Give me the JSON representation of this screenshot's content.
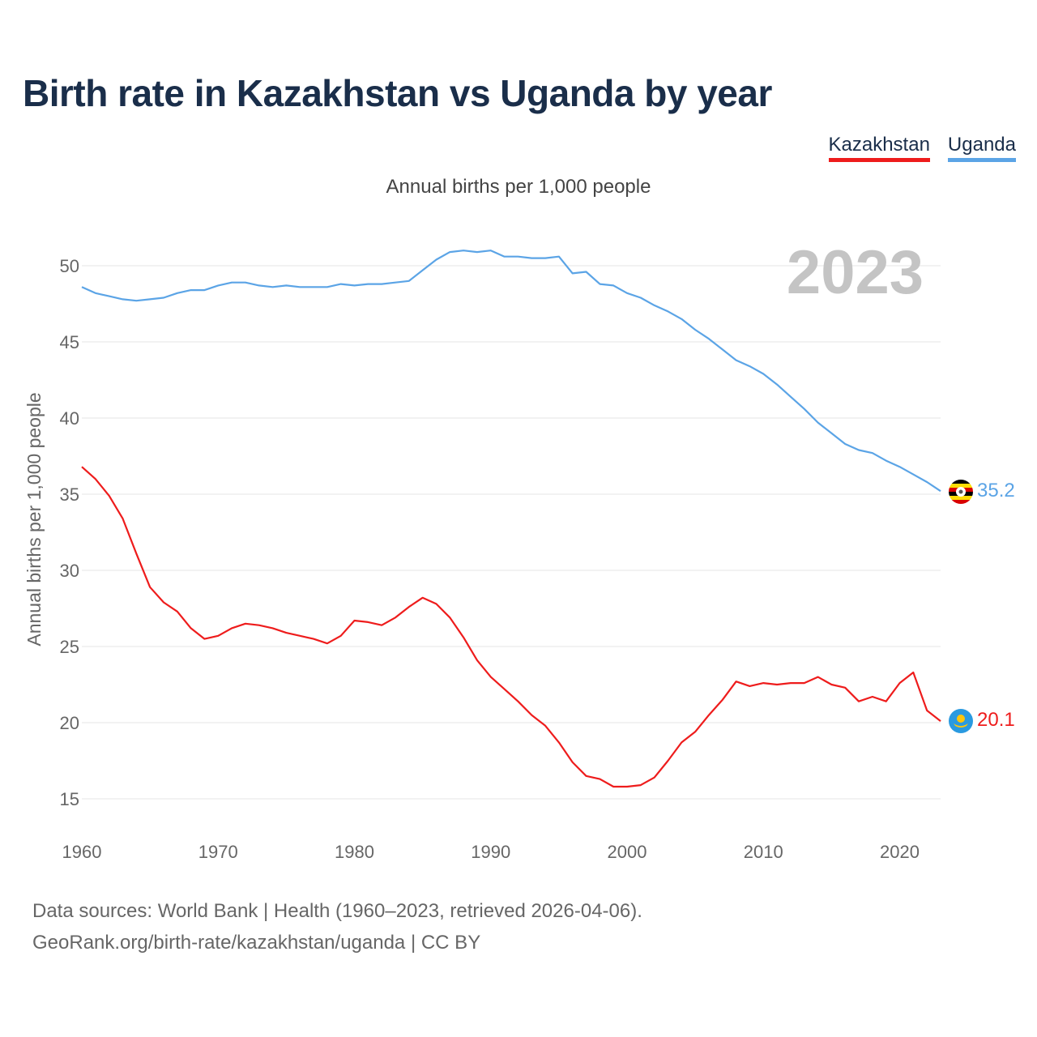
{
  "title": "Birth rate in Kazakhstan vs Uganda by year",
  "subtitle": "Annual births per 1,000 people",
  "legend": [
    {
      "name": "Kazakhstan",
      "color": "#ee1c1c"
    },
    {
      "name": "Uganda",
      "color": "#5ba4e6"
    }
  ],
  "footer": {
    "source": "Data sources: World Bank | Health (1960–2023, retrieved 2026-04-06).",
    "credit": "GeoRank.org/birth-rate/kazakhstan/uganda | CC BY"
  },
  "chart_data": {
    "type": "line",
    "title": "Birth rate in Kazakhstan vs Uganda by year",
    "ylabel": "Annual births per 1,000 people",
    "xlabel": "",
    "year_label": "2023",
    "xlim": [
      1960,
      2023
    ],
    "ylim": [
      13,
      52
    ],
    "x_ticks": [
      1960,
      1970,
      1980,
      1990,
      2000,
      2010,
      2020
    ],
    "y_ticks": [
      15,
      20,
      25,
      30,
      35,
      40,
      45,
      50
    ],
    "grid": true,
    "x": [
      1960,
      1961,
      1962,
      1963,
      1964,
      1965,
      1966,
      1967,
      1968,
      1969,
      1970,
      1971,
      1972,
      1973,
      1974,
      1975,
      1976,
      1977,
      1978,
      1979,
      1980,
      1981,
      1982,
      1983,
      1984,
      1985,
      1986,
      1987,
      1988,
      1989,
      1990,
      1991,
      1992,
      1993,
      1994,
      1995,
      1996,
      1997,
      1998,
      1999,
      2000,
      2001,
      2002,
      2003,
      2004,
      2005,
      2006,
      2007,
      2008,
      2009,
      2010,
      2011,
      2012,
      2013,
      2014,
      2015,
      2016,
      2017,
      2018,
      2019,
      2020,
      2021,
      2022,
      2023
    ],
    "series": [
      {
        "name": "Kazakhstan",
        "color": "#ee1c1c",
        "end_label": "20.1",
        "values": [
          36.8,
          36.0,
          34.9,
          33.4,
          31.1,
          28.9,
          27.9,
          27.3,
          26.2,
          25.5,
          25.7,
          26.2,
          26.5,
          26.4,
          26.2,
          25.9,
          25.7,
          25.5,
          25.2,
          25.7,
          26.7,
          26.6,
          26.4,
          26.9,
          27.6,
          28.2,
          27.8,
          26.9,
          25.6,
          24.1,
          23.0,
          22.2,
          21.4,
          20.5,
          19.8,
          18.7,
          17.4,
          16.5,
          16.3,
          15.8,
          15.8,
          15.9,
          16.4,
          17.5,
          18.7,
          19.4,
          20.5,
          21.5,
          22.7,
          22.4,
          22.6,
          22.5,
          22.6,
          22.6,
          23.0,
          22.5,
          22.3,
          21.4,
          21.7,
          21.4,
          22.6,
          23.3,
          20.8,
          20.1
        ]
      },
      {
        "name": "Uganda",
        "color": "#5ba4e6",
        "end_label": "35.2",
        "values": [
          48.6,
          48.2,
          48.0,
          47.8,
          47.7,
          47.8,
          47.9,
          48.2,
          48.4,
          48.4,
          48.7,
          48.9,
          48.9,
          48.7,
          48.6,
          48.7,
          48.6,
          48.6,
          48.6,
          48.8,
          48.7,
          48.8,
          48.8,
          48.9,
          49.0,
          49.7,
          50.4,
          50.9,
          51.0,
          50.9,
          51.0,
          50.6,
          50.6,
          50.5,
          50.5,
          50.6,
          49.5,
          49.6,
          48.8,
          48.7,
          48.2,
          47.9,
          47.4,
          47.0,
          46.5,
          45.8,
          45.2,
          44.5,
          43.8,
          43.4,
          42.9,
          42.2,
          41.4,
          40.6,
          39.7,
          39.0,
          38.3,
          37.9,
          37.7,
          37.2,
          36.8,
          36.3,
          35.8,
          35.2
        ]
      }
    ]
  }
}
